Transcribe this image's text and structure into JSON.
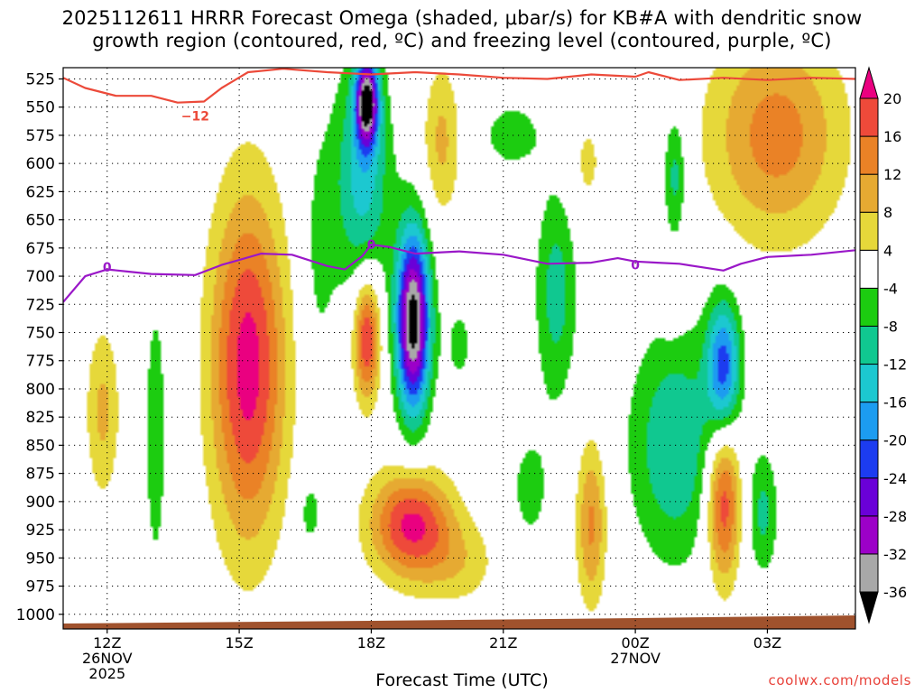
{
  "title": {
    "line1": "2025112611 HRRR Forecast Omega (shaded, μbar/s) for KB#A with dendritic snow",
    "line2": "growth region (contoured, red, ºC) and freezing level (contoured, purple, ºC)"
  },
  "credit": "coolwx.com/models",
  "chart_data": {
    "type": "heatmap",
    "title": "2025112611 HRRR Forecast Omega (shaded, μbar/s) for KB#A with dendritic snow growth region (contoured, red, ºC) and freezing level (contoured, purple, ºC)",
    "xlabel": "Forecast Time (UTC)",
    "ylabel": "",
    "x_unit": "hours since 2025-11-26 11Z",
    "xlim": [
      11,
      29
    ],
    "ylim": [
      1013,
      515
    ],
    "y_ticks": [
      525,
      550,
      575,
      600,
      625,
      650,
      675,
      700,
      725,
      750,
      775,
      800,
      825,
      850,
      875,
      900,
      925,
      950,
      975,
      1000
    ],
    "x_ticks": [
      {
        "x": 12,
        "label": "12Z",
        "sub1": "26NOV",
        "sub2": "2025"
      },
      {
        "x": 15,
        "label": "15Z",
        "sub1": "",
        "sub2": ""
      },
      {
        "x": 18,
        "label": "18Z",
        "sub1": "",
        "sub2": ""
      },
      {
        "x": 21,
        "label": "21Z",
        "sub1": "",
        "sub2": ""
      },
      {
        "x": 24,
        "label": "00Z",
        "sub1": "27NOV",
        "sub2": ""
      },
      {
        "x": 27,
        "label": "03Z",
        "sub1": "",
        "sub2": ""
      }
    ],
    "grid": true,
    "colorbar": {
      "levels": [
        -36,
        -32,
        -28,
        -24,
        -20,
        -16,
        -12,
        -8,
        -4,
        4,
        8,
        12,
        16,
        20
      ],
      "labels": [
        "-36",
        "-32",
        "-28",
        "-24",
        "-20",
        "-16",
        "-12",
        "-8",
        "-4",
        "4",
        "8",
        "12",
        "16",
        "20"
      ],
      "colors": [
        "#000000",
        "#a8a8a8",
        "#9c00c8",
        "#6a00d8",
        "#1c3cf0",
        "#1c9cf0",
        "#1cc8d0",
        "#10c890",
        "#1ccc10",
        "#ffffff",
        "#e6d83a",
        "#e6aa32",
        "#ea8226",
        "#ee4a3a",
        "#ea0080"
      ],
      "placement": "right"
    },
    "omega_features": [
      {
        "x": 15.2,
        "p": 780,
        "rx": 1.0,
        "ry": 180,
        "v": 22
      },
      {
        "x": 17.9,
        "p": 755,
        "rx": 0.35,
        "ry": 65,
        "v": 21
      },
      {
        "x": 18.9,
        "p": 920,
        "rx": 1.1,
        "ry": 55,
        "v": 21
      },
      {
        "x": 11.9,
        "p": 820,
        "rx": 0.45,
        "ry": 90,
        "v": 9
      },
      {
        "x": 16.8,
        "p": 680,
        "rx": 0.5,
        "ry": 140,
        "v": -5
      },
      {
        "x": 16.6,
        "p": 910,
        "rx": 0.35,
        "ry": 40,
        "v": -6
      },
      {
        "x": 13.1,
        "p": 840,
        "rx": 0.3,
        "ry": 150,
        "v": -7
      },
      {
        "x": 18.95,
        "p": 740,
        "rx": 0.45,
        "ry": 95,
        "v": -39
      },
      {
        "x": 17.9,
        "p": 545,
        "rx": 0.3,
        "ry": 45,
        "v": -34
      },
      {
        "x": 17.8,
        "p": 610,
        "rx": 0.75,
        "ry": 120,
        "v": -14
      },
      {
        "x": 21.2,
        "p": 575,
        "rx": 0.9,
        "ry": 40,
        "v": -6
      },
      {
        "x": 20.0,
        "p": 760,
        "rx": 0.45,
        "ry": 55,
        "v": -5
      },
      {
        "x": 22.2,
        "p": 715,
        "rx": 0.55,
        "ry": 110,
        "v": -10
      },
      {
        "x": 21.6,
        "p": 890,
        "rx": 0.7,
        "ry": 80,
        "v": -5
      },
      {
        "x": 24.9,
        "p": 850,
        "rx": 1.2,
        "ry": 120,
        "v": -12
      },
      {
        "x": 26.0,
        "p": 780,
        "rx": 0.45,
        "ry": 70,
        "v": -21
      },
      {
        "x": 24.9,
        "p": 610,
        "rx": 0.3,
        "ry": 65,
        "v": -10
      },
      {
        "x": 26.9,
        "p": 910,
        "rx": 0.4,
        "ry": 65,
        "v": -9
      },
      {
        "x": 26.0,
        "p": 900,
        "rx": 0.45,
        "ry": 85,
        "v": 20
      },
      {
        "x": 23.0,
        "p": 920,
        "rx": 0.4,
        "ry": 85,
        "v": 13
      },
      {
        "x": 19.6,
        "p": 580,
        "rx": 0.5,
        "ry": 80,
        "v": 9
      },
      {
        "x": 22.9,
        "p": 600,
        "rx": 0.5,
        "ry": 60,
        "v": 5
      },
      {
        "x": 27.2,
        "p": 575,
        "rx": 1.8,
        "ry": 110,
        "v": 14
      },
      {
        "x": 24.8,
        "p": 730,
        "rx": 0.3,
        "ry": 25,
        "v": 5
      },
      {
        "x": 20.0,
        "p": 955,
        "rx": 1.1,
        "ry": 45,
        "v": 6
      }
    ],
    "contours": [
      {
        "name": "-12",
        "color": "#ec4a3a",
        "label": "−12",
        "label_x": 14.0,
        "label_p": 558,
        "points": [
          [
            11,
            524
          ],
          [
            11.5,
            533
          ],
          [
            12.2,
            540
          ],
          [
            13.0,
            540
          ],
          [
            13.6,
            546
          ],
          [
            14.2,
            545
          ],
          [
            14.6,
            533
          ],
          [
            15.2,
            519
          ],
          [
            16.0,
            516
          ],
          [
            17.0,
            519
          ],
          [
            18.0,
            521
          ],
          [
            19.0,
            519
          ],
          [
            20.0,
            521
          ],
          [
            21.0,
            524
          ],
          [
            22.0,
            525
          ],
          [
            23.0,
            521
          ],
          [
            24.0,
            523
          ],
          [
            24.3,
            519
          ],
          [
            25.0,
            526
          ],
          [
            26.0,
            524
          ],
          [
            27.0,
            526
          ],
          [
            28.0,
            524
          ],
          [
            29.0,
            525
          ]
        ]
      },
      {
        "name": "0",
        "color": "#9a18c8",
        "label": "0",
        "label_x": 24.0,
        "label_p": 690,
        "points": [
          [
            11,
            723
          ],
          [
            11.5,
            700
          ],
          [
            12.0,
            694
          ],
          [
            12.5,
            696
          ],
          [
            13.0,
            698
          ],
          [
            14.0,
            699
          ],
          [
            14.6,
            690
          ],
          [
            15.5,
            680
          ],
          [
            16.2,
            681
          ],
          [
            17.0,
            691
          ],
          [
            17.4,
            694
          ],
          [
            17.8,
            682
          ],
          [
            18.0,
            672
          ],
          [
            18.4,
            674
          ],
          [
            19.0,
            680
          ],
          [
            20.0,
            678
          ],
          [
            21.0,
            681
          ],
          [
            22.0,
            689
          ],
          [
            23.0,
            688
          ],
          [
            23.6,
            684
          ],
          [
            24.0,
            687
          ],
          [
            24.5,
            688
          ],
          [
            25.0,
            689
          ],
          [
            25.5,
            692
          ],
          [
            26.0,
            695
          ],
          [
            26.4,
            689
          ],
          [
            27.0,
            683
          ],
          [
            28.0,
            681
          ],
          [
            29.0,
            677
          ]
        ]
      }
    ],
    "extra_contour_labels": [
      {
        "text": "0",
        "color": "#9a18c8",
        "x": 12.0,
        "p": 692
      },
      {
        "text": "0",
        "color": "#9a18c8",
        "x": 18.0,
        "p": 672
      }
    ],
    "ground_fill_color": "#a0522d"
  }
}
